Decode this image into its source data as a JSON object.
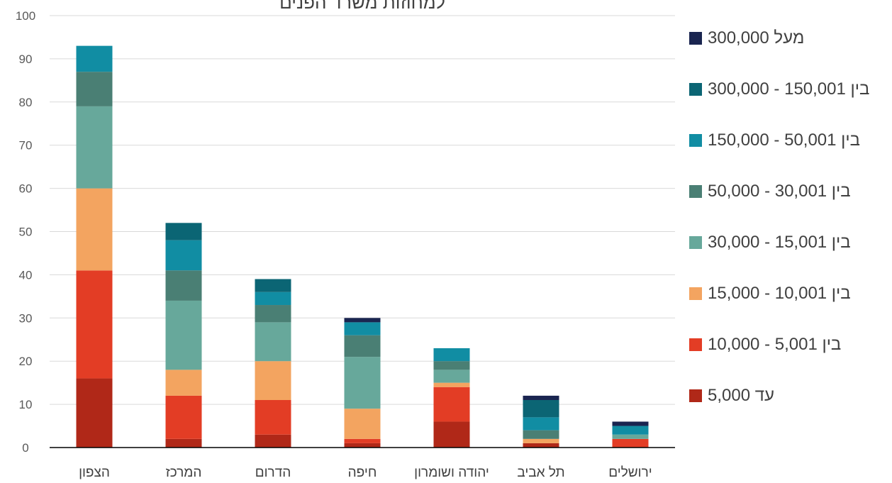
{
  "chart_data": {
    "type": "bar",
    "stacked": true,
    "title": "למחוזות משרד הפנים",
    "xlabel": "",
    "ylabel": "",
    "ylim": [
      0,
      100
    ],
    "yticks": [
      0,
      10,
      20,
      30,
      40,
      50,
      60,
      70,
      80,
      90,
      100
    ],
    "grid": true,
    "legend_position": "right",
    "categories": [
      "הצפון",
      "המרכז",
      "הדרום",
      "חיפה",
      "יהודה ושומרון",
      "תל אביב",
      "ירושלים"
    ],
    "series": [
      {
        "name": "עד 5,000",
        "color": "#b02818",
        "values": [
          16,
          2,
          3,
          1,
          6,
          1,
          0
        ]
      },
      {
        "name": "בין 5,001 - 10,000",
        "color": "#e33d25",
        "values": [
          25,
          10,
          8,
          1,
          8,
          0,
          2
        ]
      },
      {
        "name": "בין 10,001 - 15,000",
        "color": "#f3a460",
        "values": [
          19,
          6,
          9,
          7,
          1,
          1,
          0
        ]
      },
      {
        "name": "בין 15,001 - 30,000",
        "color": "#67a89b",
        "values": [
          19,
          16,
          9,
          12,
          3,
          0,
          1
        ]
      },
      {
        "name": "בין 30,001 - 50,000",
        "color": "#4a7f74",
        "values": [
          8,
          7,
          4,
          5,
          2,
          2,
          0
        ]
      },
      {
        "name": "בין 50,001 - 150,000",
        "color": "#118da3",
        "values": [
          6,
          7,
          3,
          3,
          3,
          3,
          2
        ]
      },
      {
        "name": "בין 150,001 - 300,000",
        "color": "#0b6574",
        "values": [
          0,
          4,
          3,
          0,
          0,
          4,
          0
        ]
      },
      {
        "name": "מעל 300,000",
        "color": "#1a2550",
        "values": [
          0,
          0,
          0,
          1,
          0,
          1,
          1
        ]
      }
    ]
  }
}
